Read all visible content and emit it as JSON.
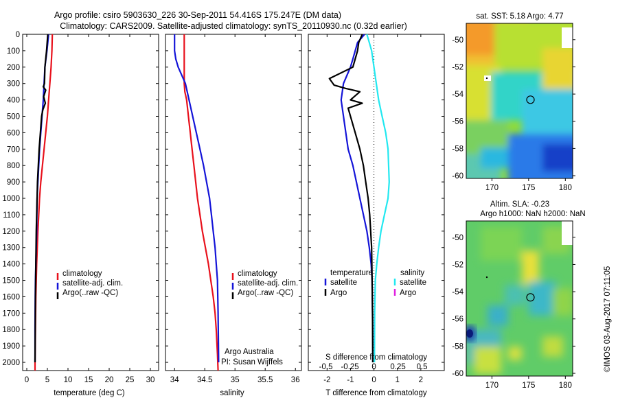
{
  "header": {
    "line1": "Argo profile: csiro 5903630_226 30-Sep-2011 54.416S 175.247E (DM data)",
    "line2": "Climatology: CARS2009. Satellite-adjusted climatology: synTS_20110930.nc (0.32d earlier)"
  },
  "colors": {
    "climatology": "#e8111c",
    "satellite": "#1414d8",
    "argo": "#000000",
    "sat_salinity": "#22e8f0",
    "argo_salinity": "#e020e0"
  },
  "credit": {
    "line1": "Argo Australia",
    "line2": "PI: Susan Wijffels"
  },
  "stamp": "©IMOS 03-Aug-2017 07:11:05",
  "chart_data": [
    {
      "type": "line",
      "panel": "temperature",
      "xlabel": "temperature (deg C)",
      "ylabel": "",
      "xlim": [
        -1,
        32
      ],
      "ylim": [
        2050,
        0
      ],
      "y_inverted": true,
      "x_ticks": [
        "0",
        "5",
        "10",
        "15",
        "20",
        "25",
        "30"
      ],
      "y_ticks": [
        "0",
        "100",
        "200",
        "300",
        "400",
        "500",
        "600",
        "700",
        "800",
        "900",
        "1000",
        "1100",
        "1200",
        "1300",
        "1400",
        "1500",
        "1600",
        "1700",
        "1800",
        "1900",
        "2000"
      ],
      "legend": {
        "placement": "lower-left",
        "entries": [
          "climatology",
          "satellite-adj. clim.",
          "Argo(..raw -QC)"
        ]
      },
      "series": [
        {
          "name": "climatology",
          "color_key": "climatology",
          "x": [
            6.2,
            6.1,
            5.9,
            5.6,
            5.3,
            5.0,
            4.6,
            4.2,
            3.8,
            3.4,
            3.1,
            2.9,
            2.7,
            2.55,
            2.4,
            2.3,
            2.2,
            2.15,
            2.1,
            2.05,
            2.0,
            2.0
          ],
          "y": [
            0,
            100,
            200,
            300,
            400,
            500,
            600,
            700,
            800,
            900,
            1000,
            1100,
            1200,
            1300,
            1400,
            1500,
            1600,
            1700,
            1800,
            1900,
            2000,
            2050
          ]
        },
        {
          "name": "satellite-adj. clim.",
          "color_key": "satellite",
          "x": [
            5.3,
            4.9,
            4.4,
            4.2,
            4.0,
            3.7,
            3.4,
            3.1,
            2.9,
            2.7,
            2.5,
            2.4,
            2.3,
            2.2,
            2.1,
            2.05,
            2.0,
            2.0
          ],
          "y": [
            0,
            100,
            200,
            300,
            400,
            500,
            600,
            700,
            800,
            900,
            1000,
            1200,
            1300,
            1400,
            1500,
            1600,
            1800,
            2000
          ]
        },
        {
          "name": "Argo(..raw -QC)",
          "color_key": "argo",
          "x": [
            5.1,
            4.8,
            4.4,
            4.3,
            4.0,
            4.6,
            4.1,
            4.5,
            3.9,
            3.6,
            3.3,
            3.0,
            2.8,
            2.6,
            2.5,
            2.4,
            2.3,
            2.2,
            2.1,
            2.05,
            2.0
          ],
          "y": [
            0,
            100,
            200,
            300,
            320,
            340,
            380,
            420,
            460,
            500,
            600,
            700,
            800,
            900,
            1000,
            1100,
            1200,
            1400,
            1600,
            1800,
            2000
          ]
        }
      ]
    },
    {
      "type": "line",
      "panel": "salinity",
      "xlabel": "salinity",
      "ylabel": "",
      "xlim": [
        33.85,
        36.1
      ],
      "ylim": [
        2050,
        0
      ],
      "y_inverted": true,
      "x_ticks": [
        "34",
        "34.5",
        "35",
        "35.5",
        "36"
      ],
      "legend": {
        "placement": "lower-right",
        "entries": [
          "climatology",
          "satellite-adj. clim.",
          "Argo(..raw -QC)"
        ]
      },
      "series": [
        {
          "name": "climatology",
          "color_key": "climatology",
          "x": [
            34.16,
            34.16,
            34.16,
            34.16,
            34.17,
            34.2,
            34.23,
            34.26,
            34.29,
            34.32,
            34.35,
            34.38,
            34.42,
            34.46,
            34.51,
            34.56,
            34.6,
            34.64,
            34.67,
            34.69,
            34.71,
            34.72
          ],
          "y": [
            0,
            100,
            200,
            300,
            350,
            400,
            500,
            600,
            700,
            800,
            900,
            1000,
            1100,
            1200,
            1300,
            1400,
            1500,
            1600,
            1700,
            1800,
            1950,
            2050
          ]
        },
        {
          "name": "satellite-adj. clim.",
          "color_key": "satellite",
          "x": [
            34.0,
            34.0,
            34.02,
            34.06,
            34.12,
            34.18,
            34.24,
            34.3,
            34.36,
            34.42,
            34.48,
            34.53,
            34.58,
            34.61,
            34.64,
            34.67,
            34.69,
            34.71,
            34.72,
            34.73
          ],
          "y": [
            0,
            100,
            150,
            200,
            250,
            300,
            400,
            500,
            600,
            700,
            800,
            900,
            1000,
            1100,
            1200,
            1300,
            1400,
            1500,
            1700,
            2000
          ]
        }
      ]
    },
    {
      "type": "line",
      "panel": "difference",
      "xlabel": "T difference from climatology",
      "xlabel_top": "S difference from climatology",
      "xlim": [
        -2.8,
        3.0
      ],
      "ylim": [
        2050,
        0
      ],
      "y_inverted": true,
      "x_ticks": [
        "-2",
        "-1",
        "0",
        "1",
        "2"
      ],
      "x_ticks_top": [
        "-0.5",
        "-0.25",
        "0",
        "0.25",
        "0.5"
      ],
      "zero_line": "dotted",
      "legend": {
        "placement": "lower-center",
        "headers": [
          "temperature",
          "salinity"
        ],
        "entries": [
          "satellite",
          "Argo",
          "satellite",
          "Argo"
        ]
      },
      "series": [
        {
          "name": "satellite",
          "quantity": "temperature",
          "color_key": "satellite",
          "x": [
            -0.4,
            -0.7,
            -0.8,
            -0.9,
            -1.0,
            -1.3,
            -1.4,
            -1.3,
            -1.2,
            -1.1,
            -0.9,
            -0.6,
            -0.45,
            -0.3,
            -0.2,
            -0.12,
            -0.08,
            -0.06,
            -0.05,
            -0.05
          ],
          "y": [
            0,
            50,
            100,
            150,
            200,
            300,
            400,
            500,
            600,
            700,
            800,
            1000,
            1100,
            1200,
            1300,
            1400,
            1500,
            1700,
            1850,
            2000
          ]
        },
        {
          "name": "Argo",
          "quantity": "temperature",
          "color_key": "argo",
          "x": [
            -0.5,
            -0.65,
            -0.7,
            -0.9,
            -1.9,
            -1.7,
            -1.2,
            -0.6,
            -1.0,
            -0.5,
            -1.1,
            -1.0,
            -0.8,
            -0.6,
            -0.45,
            -0.35,
            -0.25,
            -0.18,
            -0.1,
            -0.08,
            -0.06,
            -0.05
          ],
          "y": [
            0,
            50,
            100,
            200,
            270,
            310,
            330,
            350,
            400,
            420,
            450,
            500,
            600,
            700,
            800,
            900,
            1000,
            1100,
            1300,
            1500,
            1700,
            2000
          ]
        },
        {
          "name": "satellite",
          "quantity": "salinity",
          "color_key": "sat_salinity",
          "x": [
            -0.3,
            -0.2,
            -0.1,
            0.0,
            0.1,
            0.2,
            0.35,
            0.5,
            0.6,
            0.65,
            0.6,
            0.45,
            0.3,
            0.2,
            0.12,
            0.06,
            0.03,
            0.02
          ],
          "y": [
            0,
            50,
            100,
            200,
            300,
            400,
            500,
            600,
            700,
            900,
            1000,
            1100,
            1200,
            1300,
            1400,
            1500,
            1700,
            2000
          ]
        }
      ]
    },
    {
      "type": "heatmap",
      "panel": "sst-map",
      "title": "sat. SST: 5.18 Argo: 4.77",
      "xlim": [
        166.5,
        181
      ],
      "ylim": [
        -60.2,
        -48.8
      ],
      "x_ticks": [
        "170",
        "175",
        "180"
      ],
      "y_ticks": [
        "-50",
        "-52",
        "-54",
        "-56",
        "-58",
        "-60"
      ],
      "profile_location": {
        "lon": 175.247,
        "lat": -54.416
      }
    },
    {
      "type": "heatmap",
      "panel": "sla-map",
      "title_line1": "Altim. SLA: -0.23",
      "title_line2": "Argo h1000: NaN h2000: NaN",
      "xlim": [
        166.5,
        181
      ],
      "ylim": [
        -60.2,
        -48.8
      ],
      "x_ticks": [
        "170",
        "175",
        "180"
      ],
      "y_ticks": [
        "-50",
        "-52",
        "-54",
        "-56",
        "-58",
        "-60"
      ],
      "profile_location": {
        "lon": 175.247,
        "lat": -54.416
      }
    }
  ]
}
